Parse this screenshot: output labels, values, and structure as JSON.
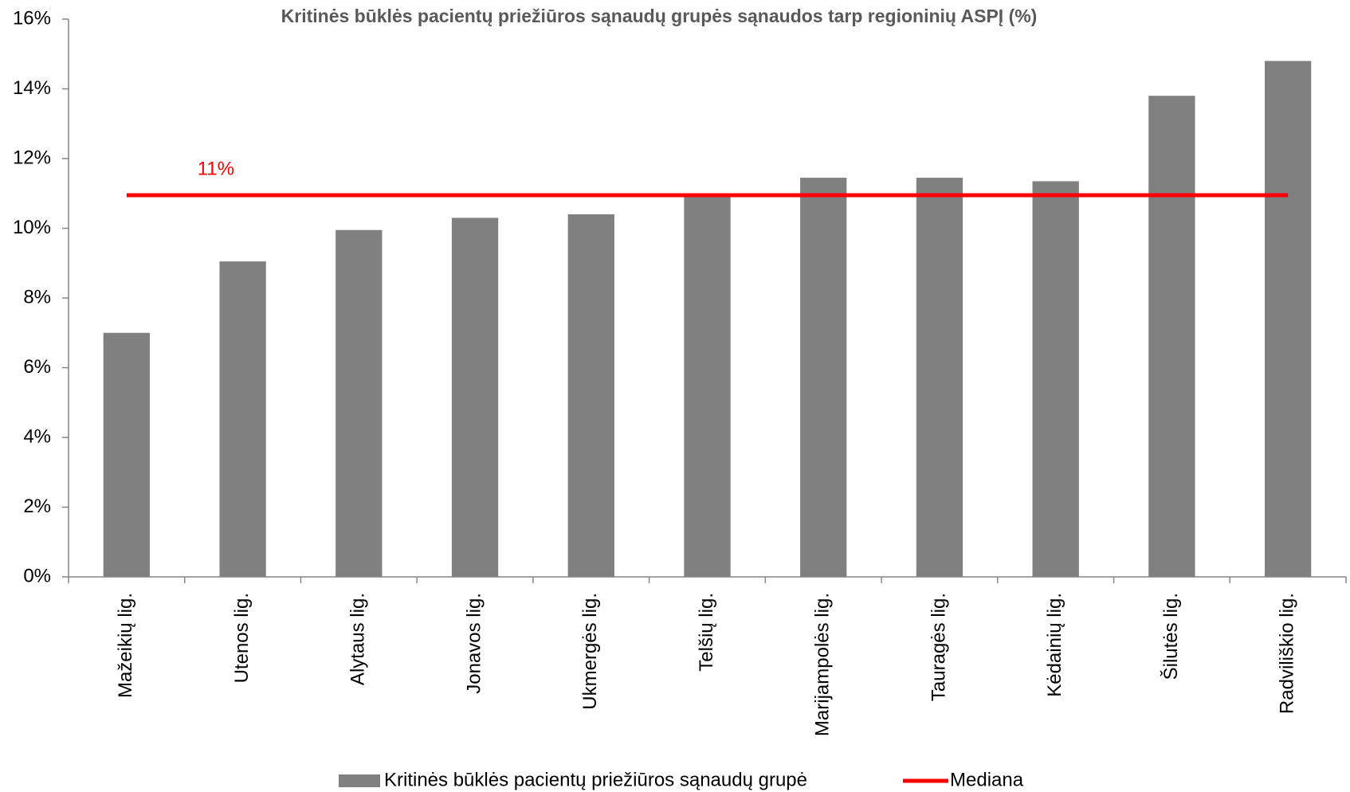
{
  "chart_data": {
    "type": "bar",
    "title": "Kritinės būklės pacientų priežiūros sąnaudų grupės sąnaudos tarp regioninių ASPĮ (%)",
    "categories": [
      "Mažeikių lig.",
      "Utenos lig.",
      "Alytaus lig.",
      "Jonavos lig.",
      "Ukmergės lig.",
      "Telšių lig.",
      "Marijampolės lig.",
      "Tauragės lig.",
      "Kėdainių lig.",
      "Šilutės lig.",
      "Radviliškio lig."
    ],
    "series": [
      {
        "name": "Kritinės būklės pacientų priežiūros sąnaudų grupė",
        "color": "#808080",
        "values": [
          7.0,
          9.05,
          9.95,
          10.3,
          10.4,
          10.95,
          11.45,
          11.45,
          11.35,
          13.8,
          14.8
        ]
      }
    ],
    "median": {
      "name": "Mediana",
      "color": "#ff0000",
      "value": 10.95,
      "label": "11%"
    },
    "ylim": [
      0,
      16
    ],
    "yticks": [
      {
        "value": 0,
        "label": "0%"
      },
      {
        "value": 2,
        "label": "2%"
      },
      {
        "value": 4,
        "label": "4%"
      },
      {
        "value": 6,
        "label": "6%"
      },
      {
        "value": 8,
        "label": "8%"
      },
      {
        "value": 10,
        "label": "10%"
      },
      {
        "value": 12,
        "label": "12%"
      },
      {
        "value": 14,
        "label": "14%"
      },
      {
        "value": 16,
        "label": "16%"
      }
    ],
    "legend": "bottom"
  }
}
